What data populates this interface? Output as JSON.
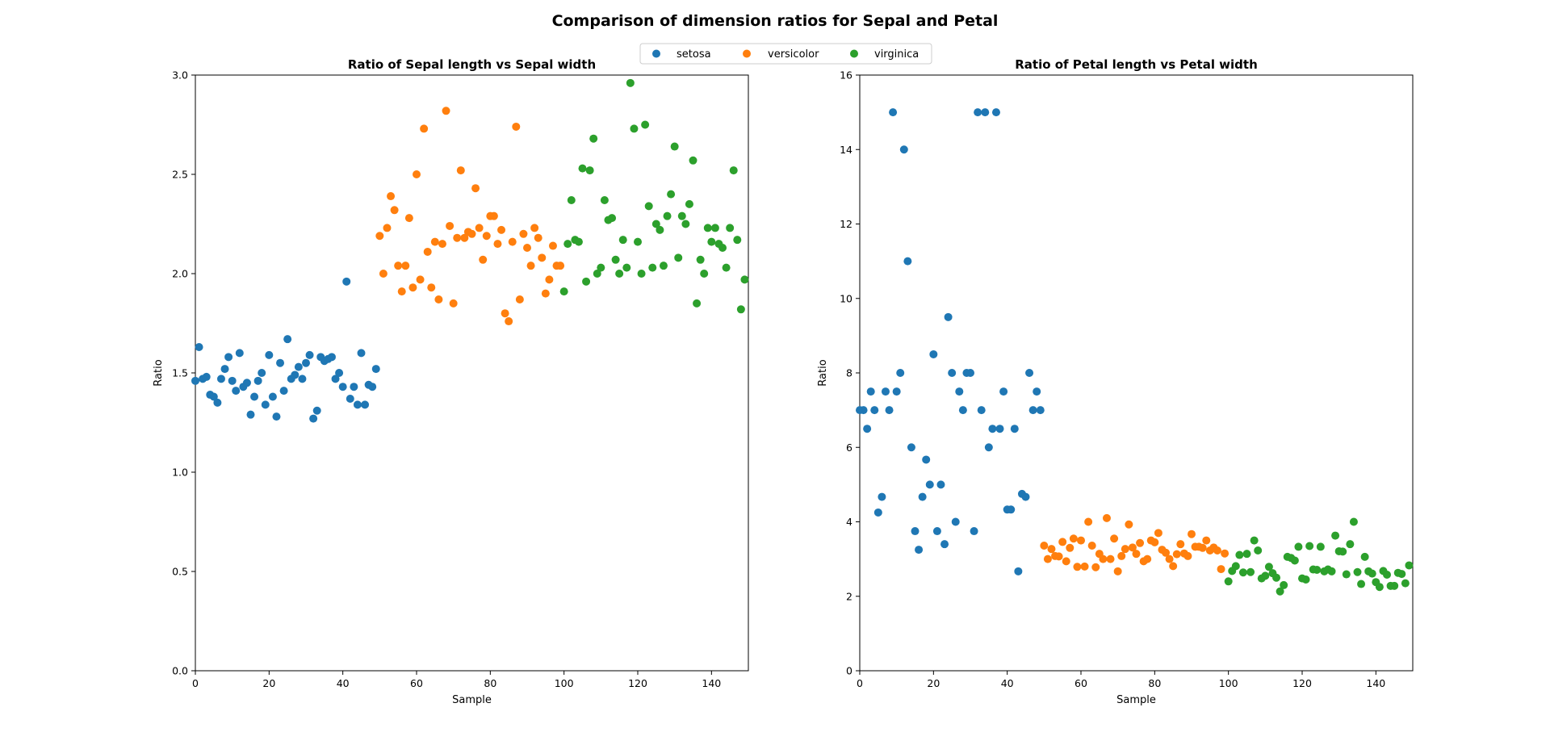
{
  "figure": {
    "title": "Comparison of dimension ratios for Sepal and Petal"
  },
  "legend": {
    "placement": "top-center",
    "entries": [
      {
        "name": "setosa",
        "color": "#1f77b4"
      },
      {
        "name": "versicolor",
        "color": "#ff7f0e"
      },
      {
        "name": "virginica",
        "color": "#2ca02c"
      }
    ]
  },
  "chart_data": [
    {
      "type": "scatter",
      "title": "Ratio of Sepal length vs Sepal width",
      "xlabel": "Sample",
      "ylabel": "Ratio",
      "xlim": [
        0,
        150
      ],
      "ylim": [
        0,
        3.0
      ],
      "xticks": [
        "0",
        "20",
        "40",
        "60",
        "80",
        "100",
        "120",
        "140"
      ],
      "yticks": [
        "0.0",
        "0.5",
        "1.0",
        "1.5",
        "2.0",
        "2.5",
        "3.0"
      ],
      "grid": false,
      "series": [
        {
          "name": "setosa",
          "color": "#1f77b4",
          "x_start": 0,
          "values": [
            1.46,
            1.63,
            1.47,
            1.48,
            1.39,
            1.38,
            1.35,
            1.47,
            1.52,
            1.58,
            1.46,
            1.41,
            1.6,
            1.43,
            1.45,
            1.29,
            1.38,
            1.46,
            1.5,
            1.34,
            1.59,
            1.38,
            1.28,
            1.55,
            1.41,
            1.67,
            1.47,
            1.49,
            1.53,
            1.47,
            1.55,
            1.59,
            1.27,
            1.31,
            1.58,
            1.56,
            1.57,
            1.58,
            1.47,
            1.5,
            1.43,
            1.96,
            1.37,
            1.43,
            1.34,
            1.6,
            1.34,
            1.44,
            1.43,
            1.52
          ]
        },
        {
          "name": "versicolor",
          "color": "#ff7f0e",
          "x_start": 50,
          "values": [
            2.19,
            2.0,
            2.23,
            2.39,
            2.32,
            2.04,
            1.91,
            2.04,
            2.28,
            1.93,
            2.5,
            1.97,
            2.73,
            2.11,
            1.93,
            2.16,
            1.87,
            2.15,
            2.82,
            2.24,
            1.85,
            2.18,
            2.52,
            2.18,
            2.21,
            2.2,
            2.43,
            2.23,
            2.07,
            2.19,
            2.29,
            2.29,
            2.15,
            2.22,
            1.8,
            1.76,
            2.16,
            2.74,
            1.87,
            2.2,
            2.13,
            2.04,
            2.23,
            2.18,
            2.08,
            1.9,
            1.97,
            2.14,
            2.04,
            2.04
          ]
        },
        {
          "name": "virginica",
          "color": "#2ca02c",
          "x_start": 100,
          "values": [
            1.91,
            2.15,
            2.37,
            2.17,
            2.16,
            2.53,
            1.96,
            2.52,
            2.68,
            2.0,
            2.03,
            2.37,
            2.27,
            2.28,
            2.07,
            2.0,
            2.17,
            2.03,
            2.96,
            2.73,
            2.16,
            2.0,
            2.75,
            2.34,
            2.03,
            2.25,
            2.22,
            2.04,
            2.29,
            2.4,
            2.64,
            2.08,
            2.29,
            2.25,
            2.35,
            2.57,
            1.85,
            2.07,
            2.0,
            2.23,
            2.16,
            2.23,
            2.15,
            2.13,
            2.03,
            2.23,
            2.52,
            2.17,
            1.82,
            1.97
          ]
        }
      ]
    },
    {
      "type": "scatter",
      "title": "Ratio of Petal length vs Petal width",
      "xlabel": "Sample",
      "ylabel": "Ratio",
      "xlim": [
        0,
        150
      ],
      "ylim": [
        0,
        16
      ],
      "xticks": [
        "0",
        "20",
        "40",
        "60",
        "80",
        "100",
        "120",
        "140"
      ],
      "yticks": [
        "0",
        "2",
        "4",
        "6",
        "8",
        "10",
        "12",
        "14",
        "16"
      ],
      "grid": false,
      "series": [
        {
          "name": "setosa",
          "color": "#1f77b4",
          "x_start": 0,
          "values": [
            7.0,
            7.0,
            6.5,
            7.5,
            7.0,
            4.25,
            4.67,
            7.5,
            7.0,
            15.0,
            7.5,
            8.0,
            14.0,
            11.0,
            6.0,
            3.75,
            3.25,
            4.67,
            5.67,
            5.0,
            8.5,
            3.75,
            5.0,
            3.4,
            9.5,
            8.0,
            4.0,
            7.5,
            7.0,
            8.0,
            8.0,
            3.75,
            15.0,
            7.0,
            15.0,
            6.0,
            6.5,
            15.0,
            6.5,
            7.5,
            4.33,
            4.33,
            6.5,
            2.67,
            4.75,
            4.67,
            8.0,
            7.0,
            7.5,
            7.0
          ]
        },
        {
          "name": "versicolor",
          "color": "#ff7f0e",
          "x_start": 50,
          "values": [
            3.36,
            3.0,
            3.27,
            3.08,
            3.07,
            3.46,
            2.94,
            3.3,
            3.55,
            2.79,
            3.5,
            2.8,
            4.0,
            3.36,
            2.78,
            3.14,
            3.0,
            4.1,
            3.0,
            3.55,
            2.67,
            3.08,
            3.27,
            3.93,
            3.31,
            3.14,
            3.43,
            2.94,
            3.0,
            3.5,
            3.45,
            3.7,
            3.25,
            3.17,
            3.0,
            2.81,
            3.13,
            3.4,
            3.15,
            3.08,
            3.67,
            3.33,
            3.33,
            3.3,
            3.5,
            3.23,
            3.31,
            3.23,
            2.73,
            3.15
          ]
        },
        {
          "name": "virginica",
          "color": "#2ca02c",
          "x_start": 100,
          "values": [
            2.4,
            2.68,
            2.81,
            3.11,
            2.64,
            3.14,
            2.65,
            3.5,
            3.23,
            2.48,
            2.55,
            2.79,
            2.62,
            2.5,
            2.13,
            2.3,
            3.06,
            3.03,
            2.96,
            3.33,
            2.48,
            2.45,
            3.35,
            2.72,
            2.71,
            3.33,
            2.67,
            2.72,
            2.67,
            3.63,
            3.21,
            3.2,
            2.59,
            3.4,
            4.0,
            2.65,
            2.33,
            3.06,
            2.67,
            2.61,
            2.38,
            2.25,
            2.68,
            2.58,
            2.28,
            2.28,
            2.63,
            2.6,
            2.35,
            2.83
          ]
        }
      ]
    }
  ]
}
